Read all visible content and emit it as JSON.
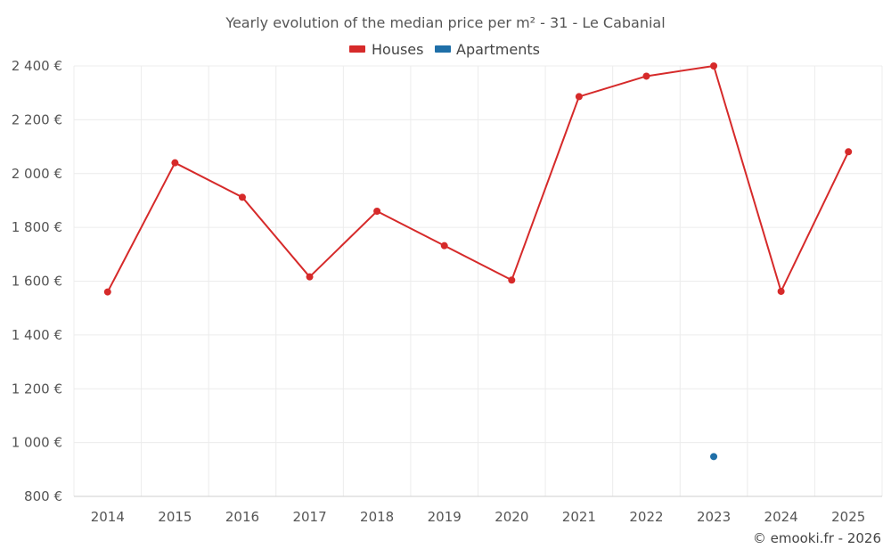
{
  "chart_data": {
    "type": "line",
    "title": "Yearly evolution of the median price per m² - 31 - Le Cabanial",
    "categories": [
      "2014",
      "2015",
      "2016",
      "2017",
      "2018",
      "2019",
      "2020",
      "2021",
      "2022",
      "2023",
      "2024",
      "2025"
    ],
    "y_tick_labels": [
      "2 400 €",
      "2 200 €",
      "2 000 €",
      "1 800 €",
      "1 600 €",
      "1 400 €",
      "1 200 €",
      "1 000 €",
      "800 €"
    ],
    "y_ticks": [
      2400,
      2200,
      2000,
      1800,
      1600,
      1400,
      1200,
      1000,
      800
    ],
    "ylim": [
      800,
      2400
    ],
    "grid": true,
    "legend_position": "top-center",
    "series": [
      {
        "name": "Houses",
        "color": "#d62a2a",
        "values": [
          1560,
          2040,
          1912,
          1616,
          1860,
          1732,
          1604,
          2286,
          2362,
          2400,
          1562,
          2081
        ]
      },
      {
        "name": "Apartments",
        "color": "#1f6fa8",
        "values": [
          null,
          null,
          null,
          null,
          null,
          null,
          null,
          null,
          null,
          948,
          null,
          null
        ]
      }
    ],
    "credit": "© emooki.fr - 2026"
  }
}
